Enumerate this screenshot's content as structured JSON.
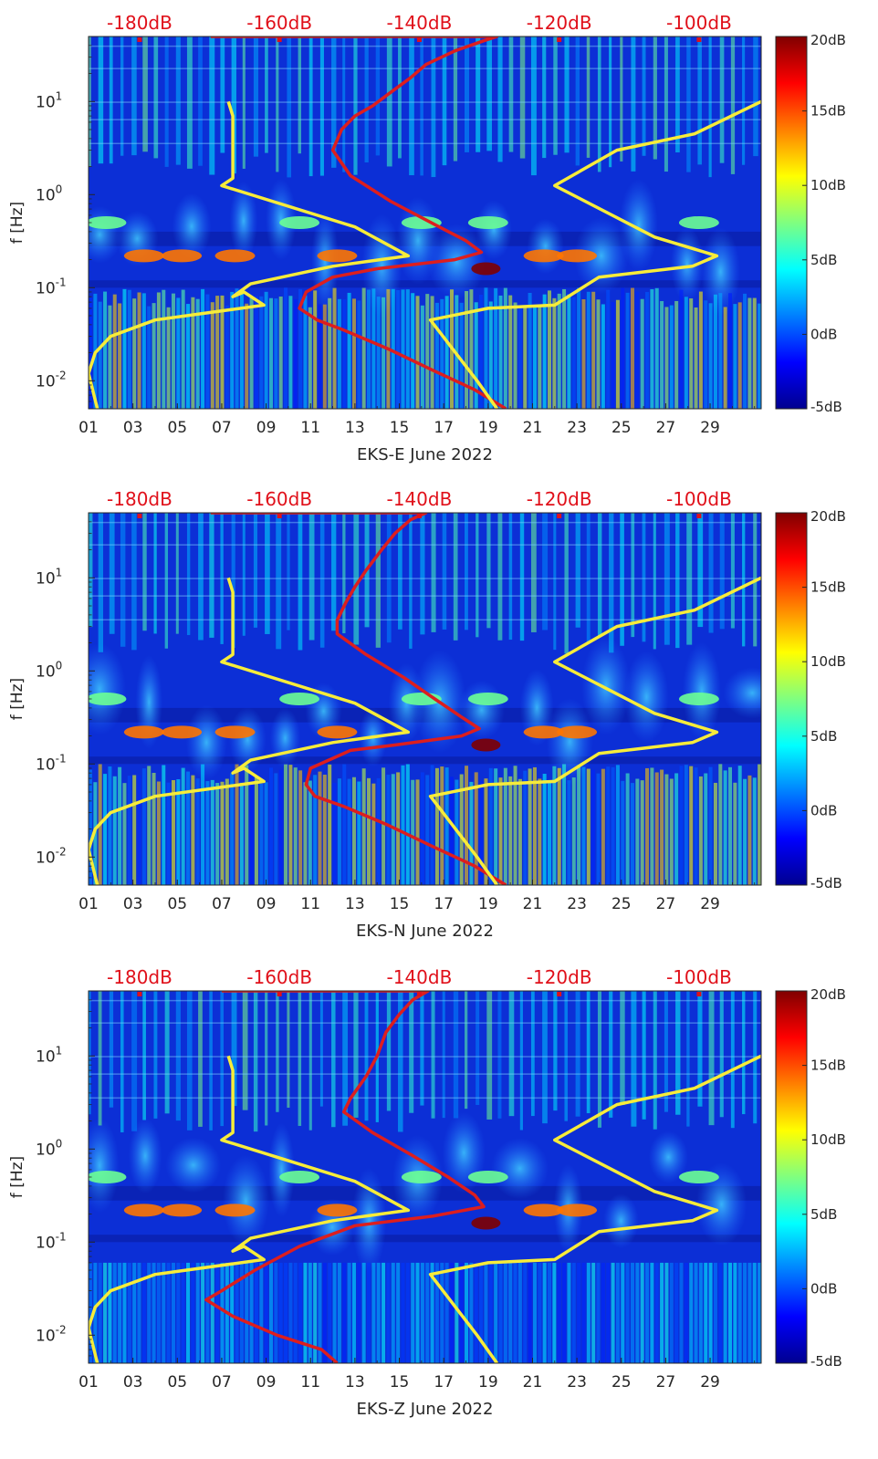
{
  "colors": {
    "background": "#0c2fd6",
    "noise_red_curve": "#dd1e1e",
    "reference_yellow_curve": "#f7ec3a",
    "top_axis_text": "#e0101a",
    "text": "#262626"
  },
  "chart_data": [
    {
      "type": "heatmap",
      "title": "",
      "xlabel": "EKS-E June 2022",
      "ylabel": "f [Hz]",
      "xlim": [
        1,
        31.3
      ],
      "ylim": [
        0.005,
        50
      ],
      "yscale": "log",
      "x_ticks": [
        "01",
        "03",
        "05",
        "07",
        "09",
        "11",
        "13",
        "15",
        "17",
        "19",
        "21",
        "23",
        "25",
        "27",
        "29"
      ],
      "y_ticks": [
        {
          "value": 0.01,
          "base": "10",
          "exp": "-2"
        },
        {
          "value": 0.1,
          "base": "10",
          "exp": "-1"
        },
        {
          "value": 1,
          "base": "10",
          "exp": "0"
        },
        {
          "value": 10,
          "base": "10",
          "exp": "1"
        }
      ],
      "top_axis": {
        "labels": [
          "-180dB",
          "-160dB",
          "-140dB",
          "-120dB",
          "-100dB"
        ],
        "positions": [
          3.3,
          9.6,
          15.9,
          22.2,
          28.5
        ]
      },
      "colorbar": {
        "range": [
          -5,
          20
        ],
        "labels": [
          "20dB",
          "15dB",
          "10dB",
          "5dB",
          "0dB",
          "-5dB"
        ],
        "values": [
          20,
          15,
          10,
          5,
          0,
          -5
        ]
      },
      "bands": [
        {
          "freq": 0.22,
          "days": [
            3.5,
            5.2,
            7.6,
            12.2,
            21.5,
            23
          ],
          "level": 14
        },
        {
          "freq": 0.16,
          "days": [
            18.9
          ],
          "level": 20
        },
        {
          "freq": 0.5,
          "days": [
            1.8,
            10.5,
            16,
            19,
            28.5
          ],
          "level": 7
        }
      ],
      "series": [
        {
          "name": "noise (red)",
          "points": [
            [
              6.5,
              50
            ],
            [
              19.4,
              50
            ],
            [
              18.8,
              45
            ],
            [
              17.5,
              35
            ],
            [
              16.2,
              25
            ],
            [
              15.5,
              18
            ],
            [
              14.5,
              12
            ],
            [
              13.8,
              9
            ],
            [
              13,
              7
            ],
            [
              12.4,
              5
            ],
            [
              12,
              3
            ],
            [
              12.8,
              1.6
            ],
            [
              14.6,
              0.85
            ],
            [
              16.8,
              0.45
            ],
            [
              18,
              0.32
            ],
            [
              18.7,
              0.24
            ],
            [
              17.5,
              0.2
            ],
            [
              14,
              0.16
            ],
            [
              12,
              0.13
            ],
            [
              10.8,
              0.09
            ],
            [
              10.5,
              0.06
            ],
            [
              11.3,
              0.045
            ],
            [
              12.5,
              0.035
            ],
            [
              14.5,
              0.022
            ],
            [
              16.5,
              0.013
            ],
            [
              18.4,
              0.008
            ],
            [
              19.8,
              0.005
            ]
          ]
        },
        {
          "name": "reference (yellow, low)",
          "points": [
            [
              1.4,
              0.005
            ],
            [
              1,
              0.012
            ],
            [
              1.3,
              0.02
            ],
            [
              2,
              0.03
            ],
            [
              4,
              0.045
            ],
            [
              8.9,
              0.065
            ],
            [
              8,
              0.09
            ],
            [
              7.5,
              0.08
            ],
            [
              8.3,
              0.11
            ],
            [
              12,
              0.17
            ],
            [
              15.4,
              0.22
            ],
            [
              13,
              0.45
            ],
            [
              7,
              1.25
            ],
            [
              7.5,
              1.5
            ],
            [
              7.5,
              7
            ],
            [
              7.3,
              10
            ]
          ]
        },
        {
          "name": "reference (yellow, high)",
          "points": [
            [
              19.4,
              0.005
            ],
            [
              18.5,
              0.01
            ],
            [
              16.4,
              0.045
            ],
            [
              19,
              0.06
            ],
            [
              22,
              0.065
            ],
            [
              24,
              0.13
            ],
            [
              28.2,
              0.17
            ],
            [
              29.3,
              0.22
            ],
            [
              26.5,
              0.35
            ],
            [
              22,
              1.25
            ],
            [
              24.8,
              3
            ],
            [
              28.3,
              4.5
            ],
            [
              31.3,
              10
            ]
          ]
        }
      ]
    },
    {
      "type": "heatmap",
      "title": "",
      "xlabel": "EKS-N June 2022",
      "ylabel": "f [Hz]",
      "xlim": [
        1,
        31.3
      ],
      "ylim": [
        0.005,
        50
      ],
      "yscale": "log",
      "x_ticks": [
        "01",
        "03",
        "05",
        "07",
        "09",
        "11",
        "13",
        "15",
        "17",
        "19",
        "21",
        "23",
        "25",
        "27",
        "29"
      ],
      "y_ticks": [
        {
          "value": 0.01,
          "base": "10",
          "exp": "-2"
        },
        {
          "value": 0.1,
          "base": "10",
          "exp": "-1"
        },
        {
          "value": 1,
          "base": "10",
          "exp": "0"
        },
        {
          "value": 10,
          "base": "10",
          "exp": "1"
        }
      ],
      "top_axis": {
        "labels": [
          "-180dB",
          "-160dB",
          "-140dB",
          "-120dB",
          "-100dB"
        ],
        "positions": [
          3.3,
          9.6,
          15.9,
          22.2,
          28.5
        ]
      },
      "colorbar": {
        "range": [
          -5,
          20
        ],
        "labels": [
          "20dB",
          "15dB",
          "10dB",
          "5dB",
          "0dB",
          "-5dB"
        ],
        "values": [
          20,
          15,
          10,
          5,
          0,
          -5
        ]
      },
      "bands": [
        {
          "freq": 0.22,
          "days": [
            3.5,
            5.2,
            7.6,
            12.2,
            21.5,
            23
          ],
          "level": 14
        },
        {
          "freq": 0.16,
          "days": [
            18.9
          ],
          "level": 20
        },
        {
          "freq": 0.5,
          "days": [
            1.8,
            10.5,
            16,
            19,
            28.5
          ],
          "level": 7
        }
      ],
      "series": [
        {
          "name": "noise (red)",
          "points": [
            [
              6.5,
              50
            ],
            [
              16.2,
              50
            ],
            [
              15.5,
              42
            ],
            [
              14.8,
              30
            ],
            [
              14.2,
              20
            ],
            [
              13.5,
              12
            ],
            [
              13,
              8
            ],
            [
              12.6,
              5.5
            ],
            [
              12.2,
              3.5
            ],
            [
              12.2,
              2.5
            ],
            [
              13.5,
              1.5
            ],
            [
              15.2,
              0.85
            ],
            [
              16.6,
              0.5
            ],
            [
              17.8,
              0.32
            ],
            [
              18.6,
              0.24
            ],
            [
              17.8,
              0.2
            ],
            [
              14.8,
              0.16
            ],
            [
              12.8,
              0.14
            ],
            [
              11,
              0.09
            ],
            [
              10.8,
              0.06
            ],
            [
              11.2,
              0.045
            ],
            [
              12.5,
              0.035
            ],
            [
              14.5,
              0.022
            ],
            [
              16.5,
              0.013
            ],
            [
              18.4,
              0.008
            ],
            [
              19.8,
              0.005
            ]
          ]
        },
        {
          "name": "reference (yellow, low)",
          "points": [
            [
              1.4,
              0.005
            ],
            [
              1,
              0.012
            ],
            [
              1.3,
              0.02
            ],
            [
              2,
              0.03
            ],
            [
              4,
              0.045
            ],
            [
              8.9,
              0.065
            ],
            [
              8,
              0.09
            ],
            [
              7.5,
              0.08
            ],
            [
              8.3,
              0.11
            ],
            [
              12,
              0.17
            ],
            [
              15.4,
              0.22
            ],
            [
              13,
              0.45
            ],
            [
              7,
              1.25
            ],
            [
              7.5,
              1.5
            ],
            [
              7.5,
              7
            ],
            [
              7.3,
              10
            ]
          ]
        },
        {
          "name": "reference (yellow, high)",
          "points": [
            [
              19.4,
              0.005
            ],
            [
              18.5,
              0.01
            ],
            [
              16.4,
              0.045
            ],
            [
              19,
              0.06
            ],
            [
              22,
              0.065
            ],
            [
              24,
              0.13
            ],
            [
              28.2,
              0.17
            ],
            [
              29.3,
              0.22
            ],
            [
              26.5,
              0.35
            ],
            [
              22,
              1.25
            ],
            [
              24.8,
              3
            ],
            [
              28.3,
              4.5
            ],
            [
              31.3,
              10
            ]
          ]
        }
      ]
    },
    {
      "type": "heatmap",
      "title": "",
      "xlabel": "EKS-Z June 2022",
      "ylabel": "f [Hz]",
      "xlim": [
        1,
        31.3
      ],
      "ylim": [
        0.005,
        50
      ],
      "yscale": "log",
      "x_ticks": [
        "01",
        "03",
        "05",
        "07",
        "09",
        "11",
        "13",
        "15",
        "17",
        "19",
        "21",
        "23",
        "25",
        "27",
        "29"
      ],
      "y_ticks": [
        {
          "value": 0.01,
          "base": "10",
          "exp": "-2"
        },
        {
          "value": 0.1,
          "base": "10",
          "exp": "-1"
        },
        {
          "value": 1,
          "base": "10",
          "exp": "0"
        },
        {
          "value": 10,
          "base": "10",
          "exp": "1"
        }
      ],
      "top_axis": {
        "labels": [
          "-180dB",
          "-160dB",
          "-140dB",
          "-120dB",
          "-100dB"
        ],
        "positions": [
          3.3,
          9.6,
          15.9,
          22.2,
          28.5
        ]
      },
      "colorbar": {
        "range": [
          -5,
          20
        ],
        "labels": [
          "20dB",
          "15dB",
          "10dB",
          "5dB",
          "0dB",
          "-5dB"
        ],
        "values": [
          20,
          15,
          10,
          5,
          0,
          -5
        ]
      },
      "bands": [
        {
          "freq": 0.22,
          "days": [
            3.5,
            5.2,
            7.6,
            12.2,
            21.5,
            23
          ],
          "level": 14
        },
        {
          "freq": 0.16,
          "days": [
            18.9
          ],
          "level": 20
        },
        {
          "freq": 0.5,
          "days": [
            1.8,
            10.5,
            16,
            19,
            28.5
          ],
          "level": 7
        }
      ],
      "series": [
        {
          "name": "noise (red)",
          "points": [
            [
              7,
              50
            ],
            [
              16.3,
              50
            ],
            [
              15.6,
              40
            ],
            [
              15,
              28
            ],
            [
              14.4,
              18
            ],
            [
              14,
              10
            ],
            [
              13.5,
              6
            ],
            [
              12.8,
              3.5
            ],
            [
              12.5,
              2.5
            ],
            [
              13.8,
              1.5
            ],
            [
              15.6,
              0.85
            ],
            [
              17.2,
              0.5
            ],
            [
              18.4,
              0.32
            ],
            [
              18.8,
              0.24
            ],
            [
              16.5,
              0.19
            ],
            [
              13,
              0.15
            ],
            [
              10.5,
              0.09
            ],
            [
              8.5,
              0.05
            ],
            [
              7,
              0.03
            ],
            [
              6.3,
              0.024
            ],
            [
              7.5,
              0.016
            ],
            [
              9.5,
              0.01
            ],
            [
              11.5,
              0.007
            ],
            [
              12.2,
              0.005
            ]
          ]
        },
        {
          "name": "reference (yellow, low)",
          "points": [
            [
              1.4,
              0.005
            ],
            [
              1,
              0.012
            ],
            [
              1.3,
              0.02
            ],
            [
              2,
              0.03
            ],
            [
              4,
              0.045
            ],
            [
              8.9,
              0.065
            ],
            [
              8,
              0.09
            ],
            [
              7.5,
              0.08
            ],
            [
              8.3,
              0.11
            ],
            [
              12,
              0.17
            ],
            [
              15.4,
              0.22
            ],
            [
              13,
              0.45
            ],
            [
              7,
              1.25
            ],
            [
              7.5,
              1.5
            ],
            [
              7.5,
              7
            ],
            [
              7.3,
              10
            ]
          ]
        },
        {
          "name": "reference (yellow, high)",
          "points": [
            [
              19.4,
              0.005
            ],
            [
              18.5,
              0.01
            ],
            [
              16.4,
              0.045
            ],
            [
              19,
              0.06
            ],
            [
              22,
              0.065
            ],
            [
              24,
              0.13
            ],
            [
              28.2,
              0.17
            ],
            [
              29.3,
              0.22
            ],
            [
              26.5,
              0.35
            ],
            [
              22,
              1.25
            ],
            [
              24.8,
              3
            ],
            [
              28.3,
              4.5
            ],
            [
              31.3,
              10
            ]
          ]
        }
      ]
    }
  ]
}
